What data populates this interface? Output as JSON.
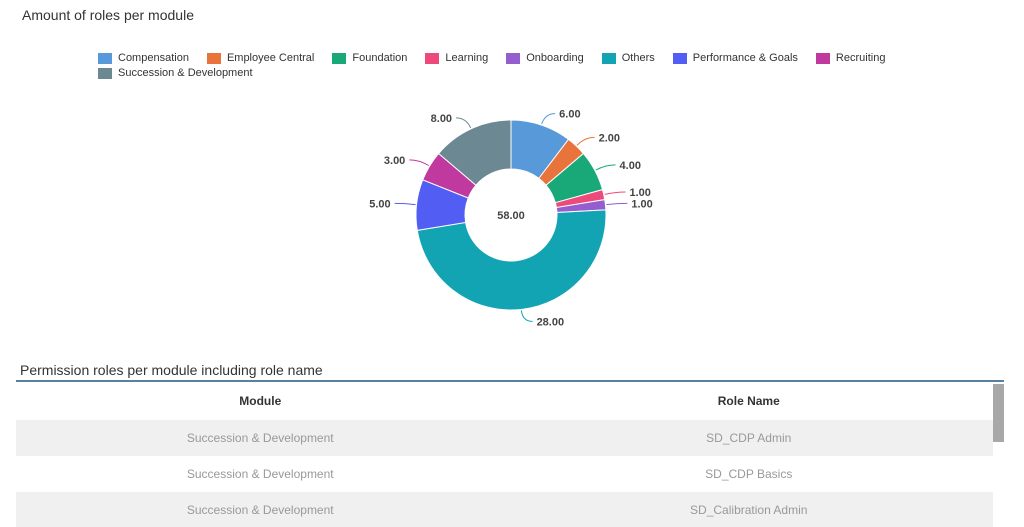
{
  "chart_section": {
    "title": "Amount of roles per module"
  },
  "chart_data": {
    "type": "pie",
    "subtype": "donut",
    "title": "Amount of roles per module",
    "total_label": "58.00",
    "legend_position": "top",
    "series": [
      {
        "name": "Compensation",
        "value": 6,
        "label": "6.00",
        "color": "#5899DA"
      },
      {
        "name": "Employee Central",
        "value": 2,
        "label": "2.00",
        "color": "#E8743B"
      },
      {
        "name": "Foundation",
        "value": 4,
        "label": "4.00",
        "color": "#19A979"
      },
      {
        "name": "Learning",
        "value": 1,
        "label": "1.00",
        "color": "#ED4A7B"
      },
      {
        "name": "Onboarding",
        "value": 1,
        "label": "1.00",
        "color": "#945ECF"
      },
      {
        "name": "Others",
        "value": 28,
        "label": "28.00",
        "color": "#13A4B4"
      },
      {
        "name": "Performance & Goals",
        "value": 5,
        "label": "5.00",
        "color": "#525DF4"
      },
      {
        "name": "Recruiting",
        "value": 3,
        "label": "3.00",
        "color": "#BF399E"
      },
      {
        "name": "Succession & Development",
        "value": 8,
        "label": "8.00",
        "color": "#6C8893"
      }
    ]
  },
  "table_section": {
    "title": "Permission roles per module including role name",
    "columns": [
      "Module",
      "Role Name"
    ],
    "rows": [
      [
        "Succession & Development",
        "SD_CDP Admin"
      ],
      [
        "Succession & Development",
        "SD_CDP Basics"
      ],
      [
        "Succession & Development",
        "SD_Calibration Admin"
      ]
    ]
  }
}
